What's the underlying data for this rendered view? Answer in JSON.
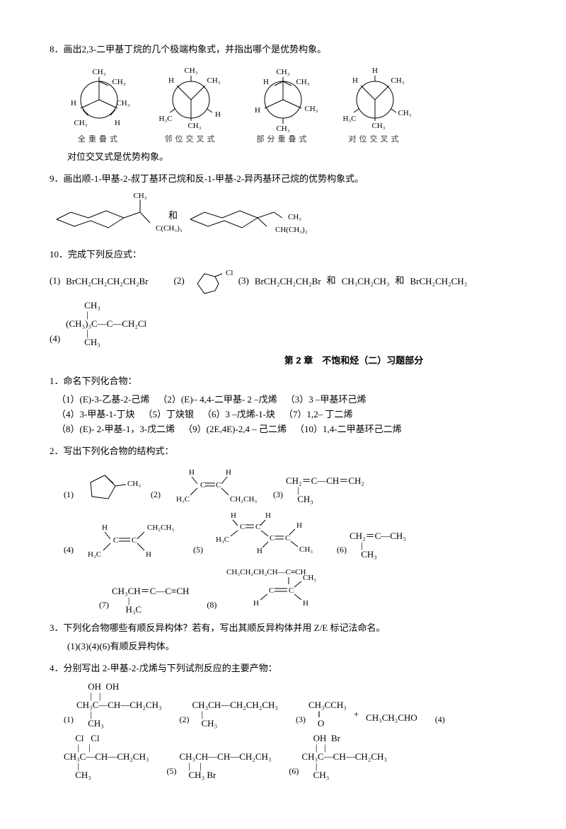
{
  "q8": {
    "text": "8．画出2,3-二甲基丁烷的几个极端构象式，并指出哪个是优势构象。",
    "labels": [
      "全重叠式",
      "邻位交叉式",
      "部分重叠式",
      "对位交叉式"
    ],
    "note": "对位交叉式是优势构象。",
    "groups": {
      "ch3": "CH₃",
      "h": "H",
      "h3c": "H₃C"
    }
  },
  "q9": {
    "text": "9．画出顺-1-甲基-2-叔丁基环己烷和反-1-甲基-2-异丙基环己烷的优势构象式。",
    "labels": {
      "ch3": "CH₃",
      "c_ch3_3": "C(CH₃)₃",
      "ch_ch3_2": "CH(CH₃)₂",
      "and": "和"
    }
  },
  "q10": {
    "text": "10．完成下列反应式：",
    "items": {
      "n1": "(1)",
      "f1": "BrCH₂CH₂CH₂CH₂Br",
      "n2": "(2)",
      "n3": "(3)",
      "f3a": "BrCH₂CH₂CH₂Br",
      "and": "和",
      "f3b": "CH₃CH₂CH₃",
      "f3c": "BrCH₂CH₂CH₃",
      "n4": "(4)"
    },
    "f2_label": "Cl",
    "f4_lines": [
      "        CH₃",
      "         |",
      "(CH₃)₃C—C—CH₂Cl",
      "         |",
      "        CH₃"
    ]
  },
  "chapter": "第 2 章　不饱和烃（二）习题部分",
  "p1": {
    "title": "1．命名下列化合物：",
    "items": [
      "（1）(E)-3-乙基-2-己烯",
      "（2）(E)– 4,4-二甲基- 2 –戊烯",
      "（3）3 –甲基环己烯",
      "（4）3-甲基-1-丁炔",
      "（5）丁炔银",
      "（6）3 –戊烯-1-炔",
      "（7）1,2– 丁二烯",
      "（8）(E)- 2-甲基-1，3-戊二烯",
      "（9）(2E,4E)-2,4 – 己二烯",
      "（10）1,4-二甲基环己二烯"
    ]
  },
  "p2": {
    "title": "2．写出下列化合物的结构式：",
    "nums": [
      "(1)",
      "(2)",
      "(3)",
      "(4)",
      "(5)",
      "(6)",
      "(7)",
      "(8)"
    ],
    "labels": {
      "ch3": "CH₃",
      "h": "H",
      "h3c": "H₃C",
      "ch2ch3": "CH₂CH₃",
      "ch2": "CH₂",
      "c": "C",
      "ch": "CH"
    },
    "f1_label": "CH₃",
    "f3": [
      "CH₂＝C—CH＝CH₂",
      "     |",
      "     CH₃"
    ],
    "f6": [
      "CH₂＝C—CH₃",
      "     |",
      "     CH₃"
    ],
    "f7": [
      "CH₃CH＝C—C≡CH",
      "       |",
      "      H₃C"
    ],
    "f8_top": "CH₃CH₂CH₂CH—C≡CH"
  },
  "p3": {
    "title": "3．下列化合物哪些有顺反异构体？若有，写出其顺反异构体并用 Z/E 标记法命名。",
    "answer": "(1)(3)(4)(6)有顺反异构体。"
  },
  "p4": {
    "title": "4．分别写出 2-甲基-2-戊烯与下列试剂反应的主要产物：",
    "nums": [
      "(1)",
      "(2)",
      "(3)",
      "(4)",
      "(5)",
      "(6)"
    ],
    "f1": [
      "     OH  OH",
      "      |   |",
      "CH₃C—CH—CH₂CH₃",
      "      |",
      "     CH₃"
    ],
    "f2": [
      "CH₃CH—CH₂CH₂CH₃",
      "    |",
      "    CH₃"
    ],
    "f3a": [
      "CH₃CCH₃",
      "    ‖",
      "    O"
    ],
    "f3plus": "+",
    "f3b": "CH₃CH₂CHO",
    "f4": [
      "     Cl   Cl",
      "      |    |",
      "CH₃C—CH—CH₂CH₃",
      "      |",
      "     CH₃"
    ],
    "f5": [
      "CH₃CH—CH—CH₂CH₃",
      "    |    |",
      "    CH₃ Br"
    ],
    "f6": [
      "     OH  Br",
      "      |   |",
      "CH₃C—CH—CH₂CH₃",
      "      |",
      "     CH₃"
    ]
  }
}
